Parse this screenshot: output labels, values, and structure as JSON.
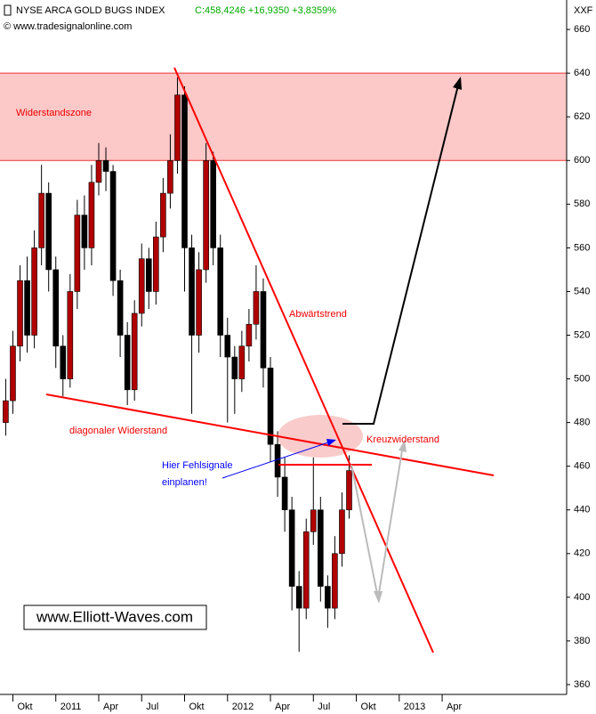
{
  "chart_data": {
    "type": "candlestick",
    "title": "NYSE ARCA GOLD BUGS INDEX",
    "quote": "C:458,4246 +16,9350 +3,8359%",
    "source": "© www.tradesignalonline.com",
    "corner_label": "XXF",
    "watermark": "www.Elliott-Waves.com",
    "annotations": {
      "zone": "Widerstandszone",
      "downtrend": "Abwärtstrend",
      "diagonal": "diagonaler Widerstand",
      "cross": "Kreuzwiderstand",
      "false_signals_1": "Hier Fehlsignale",
      "false_signals_2": "einplanen!"
    },
    "resistance_zone": [
      600,
      640
    ],
    "up_color": "#b00000",
    "down_color": "#000000",
    "series": [
      {
        "x": [
          8.5,
          9,
          9.5,
          10,
          10.5,
          11,
          11.5,
          12,
          12.5,
          13,
          13.5,
          14,
          14.5,
          15,
          15.5,
          16,
          16.5,
          17,
          17.5,
          18,
          18.5,
          19,
          19.5,
          20,
          20.5,
          21,
          21.5,
          22,
          22.5,
          23,
          23.5,
          24,
          24.5,
          25,
          25.5,
          26,
          26.5,
          27,
          27.5,
          28,
          28.5,
          29,
          29.5,
          30,
          30.5,
          31,
          31.5,
          32,
          32.5
        ],
        "open": [
          480,
          490,
          515,
          545,
          520,
          560,
          585,
          550,
          515,
          500,
          540,
          575,
          560,
          590,
          600,
          595,
          545,
          520,
          495,
          530,
          555,
          540,
          565,
          585,
          600,
          630,
          560,
          520,
          550,
          600,
          560,
          520,
          510,
          500,
          515,
          525,
          540,
          505,
          470,
          455,
          440,
          405,
          395,
          430,
          440,
          405,
          395,
          420,
          440
        ],
        "high": [
          500,
          522,
          552,
          556,
          568,
          598,
          590,
          556,
          520,
          548,
          582,
          584,
          598,
          608,
          606,
          598,
          550,
          526,
          536,
          562,
          560,
          572,
          592,
          612,
          638,
          634,
          566,
          558,
          608,
          604,
          566,
          528,
          515,
          522,
          532,
          552,
          546,
          510,
          476,
          464,
          446,
          412,
          436,
          464,
          446,
          410,
          428,
          448,
          465
        ],
        "low": [
          474,
          484,
          508,
          512,
          514,
          552,
          540,
          505,
          492,
          496,
          532,
          550,
          552,
          584,
          586,
          538,
          510,
          488,
          490,
          524,
          532,
          534,
          558,
          578,
          594,
          540,
          484,
          512,
          544,
          552,
          510,
          480,
          484,
          494,
          508,
          518,
          496,
          462,
          446,
          430,
          394,
          375,
          390,
          424,
          398,
          386,
          390,
          414,
          436
        ],
        "close": [
          490,
          515,
          545,
          520,
          560,
          585,
          550,
          515,
          500,
          540,
          575,
          560,
          590,
          600,
          595,
          545,
          520,
          495,
          530,
          555,
          540,
          565,
          585,
          600,
          630,
          560,
          520,
          550,
          600,
          560,
          520,
          510,
          500,
          515,
          525,
          540,
          505,
          470,
          455,
          440,
          405,
          395,
          430,
          440,
          405,
          395,
          420,
          440,
          458
        ]
      }
    ],
    "xlim": [
      8.1,
      47.7
    ],
    "ylim": [
      355.5,
      673.5
    ],
    "xticks": [
      {
        "value": 9,
        "label": "Okt"
      },
      {
        "value": 12,
        "label": "2011"
      },
      {
        "value": 15,
        "label": "Apr"
      },
      {
        "value": 18,
        "label": "Jul"
      },
      {
        "value": 21,
        "label": "Okt"
      },
      {
        "value": 24,
        "label": "2012"
      },
      {
        "value": 27,
        "label": "Apr"
      },
      {
        "value": 30,
        "label": "Jul"
      },
      {
        "value": 33,
        "label": "Okt"
      },
      {
        "value": 36,
        "label": "2013"
      },
      {
        "value": 39,
        "label": "Apr"
      }
    ],
    "yticks": [
      360,
      380,
      400,
      420,
      440,
      460,
      480,
      500,
      520,
      540,
      560,
      580,
      600,
      620,
      640,
      660
    ],
    "grid": false
  }
}
